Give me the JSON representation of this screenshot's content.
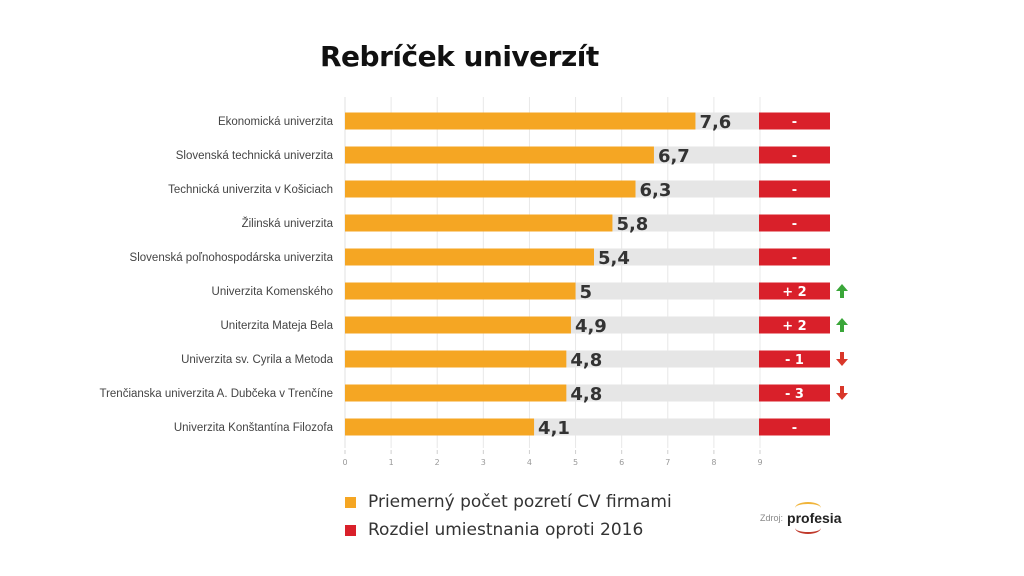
{
  "chart_data": {
    "type": "bar",
    "orientation": "horizontal",
    "title": "Rebríček univerzít",
    "categories": [
      "Ekonomická univerzita",
      "Slovenská technická univerzita",
      "Technická univerzita v Košiciach",
      "Žilinská univerzita",
      "Slovenská poľnohospodárska univerzita",
      "Univerzita Komenského",
      "Uniterzita Mateja Bela",
      "Univerzita sv. Cyrila a Metoda",
      "Trenčianska univerzita A. Dubčeka v Trenčíne",
      "Univerzita Konštantína Filozofa"
    ],
    "series": [
      {
        "name": "Priemerný počet pozretí CV firmami",
        "color": "#f5a623",
        "values": [
          7.6,
          6.7,
          6.3,
          5.8,
          5.4,
          5.0,
          4.9,
          4.8,
          4.8,
          4.1
        ],
        "labels": [
          "7,6",
          "6,7",
          "6,3",
          "5,8",
          "5,4",
          "5",
          "4,9",
          "4,8",
          "4,8",
          "4,1"
        ]
      },
      {
        "name": "Rozdiel umiestnania oproti 2016",
        "color": "#d9202a",
        "values": [
          0,
          0,
          0,
          0,
          0,
          2,
          2,
          -1,
          -3,
          0
        ],
        "labels": [
          "-",
          "-",
          "-",
          "-",
          "-",
          "+ 2",
          "+ 2",
          "- 1",
          "- 3",
          "-"
        ],
        "trend": [
          "none",
          "none",
          "none",
          "none",
          "none",
          "up",
          "up",
          "down",
          "down",
          "none"
        ]
      }
    ],
    "xticks": [
      "0",
      "1",
      "2",
      "3",
      "4",
      "5",
      "6",
      "7",
      "8",
      "9"
    ],
    "xlim": [
      0,
      9
    ],
    "grid": true,
    "track_color": "#e6e6e6",
    "up_color": "#3aa639",
    "down_color": "#d9372a",
    "legend_position": "bottom"
  },
  "source": {
    "label": "Zdroj:",
    "logo_text": "profesia"
  }
}
